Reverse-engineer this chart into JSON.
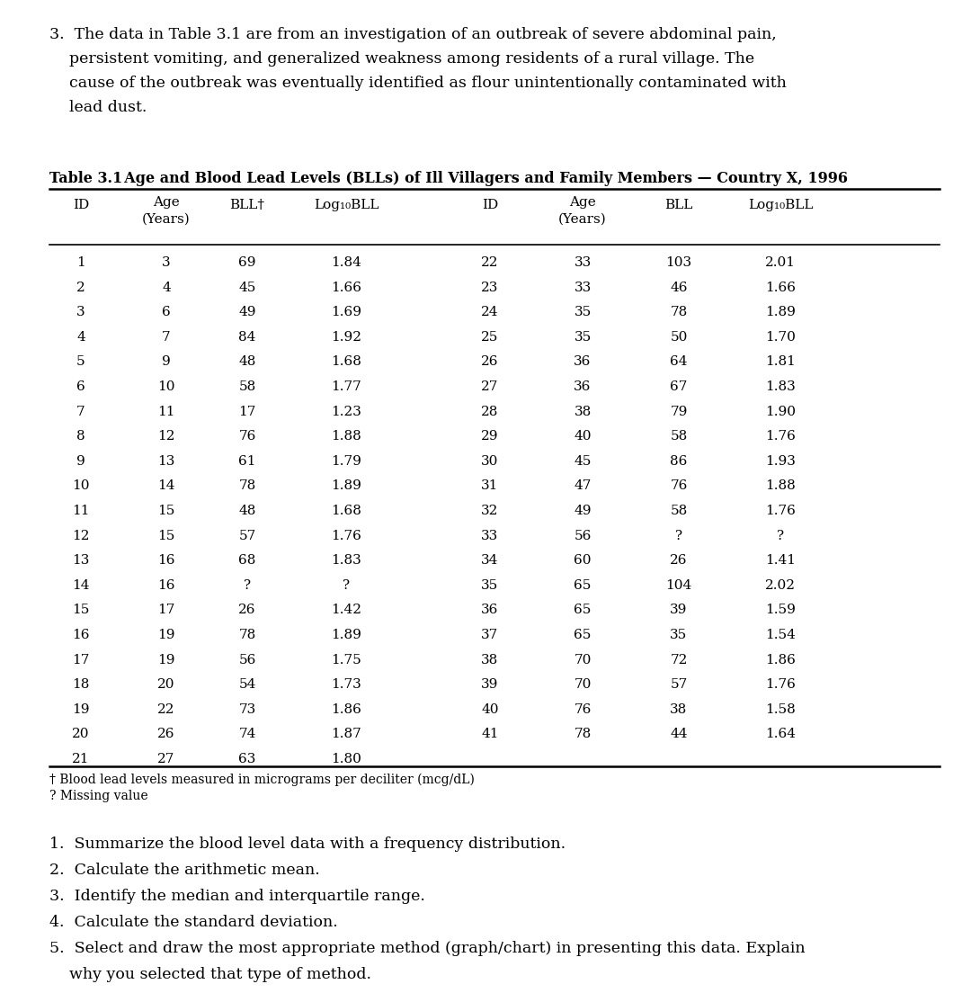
{
  "intro_lines": [
    "3.  The data in Table 3.1 are from an investigation of an outbreak of severe abdominal pain,",
    "    persistent vomiting, and generalized weakness among residents of a rural village. The",
    "    cause of the outbreak was eventually identified as flour unintentionally contaminated with",
    "    lead dust."
  ],
  "table_title_bold": "Table 3.1",
  "table_title_rest": "  Age and Blood Lead Levels (BLLs) of Ill Villagers and Family Members — Country X, 1996",
  "left_data": [
    [
      "1",
      "3",
      "69",
      "1.84"
    ],
    [
      "2",
      "4",
      "45",
      "1.66"
    ],
    [
      "3",
      "6",
      "49",
      "1.69"
    ],
    [
      "4",
      "7",
      "84",
      "1.92"
    ],
    [
      "5",
      "9",
      "48",
      "1.68"
    ],
    [
      "6",
      "10",
      "58",
      "1.77"
    ],
    [
      "7",
      "11",
      "17",
      "1.23"
    ],
    [
      "8",
      "12",
      "76",
      "1.88"
    ],
    [
      "9",
      "13",
      "61",
      "1.79"
    ],
    [
      "10",
      "14",
      "78",
      "1.89"
    ],
    [
      "11",
      "15",
      "48",
      "1.68"
    ],
    [
      "12",
      "15",
      "57",
      "1.76"
    ],
    [
      "13",
      "16",
      "68",
      "1.83"
    ],
    [
      "14",
      "16",
      "?",
      "?"
    ],
    [
      "15",
      "17",
      "26",
      "1.42"
    ],
    [
      "16",
      "19",
      "78",
      "1.89"
    ],
    [
      "17",
      "19",
      "56",
      "1.75"
    ],
    [
      "18",
      "20",
      "54",
      "1.73"
    ],
    [
      "19",
      "22",
      "73",
      "1.86"
    ],
    [
      "20",
      "26",
      "74",
      "1.87"
    ],
    [
      "21",
      "27",
      "63",
      "1.80"
    ]
  ],
  "right_data": [
    [
      "22",
      "33",
      "103",
      "2.01"
    ],
    [
      "23",
      "33",
      "46",
      "1.66"
    ],
    [
      "24",
      "35",
      "78",
      "1.89"
    ],
    [
      "25",
      "35",
      "50",
      "1.70"
    ],
    [
      "26",
      "36",
      "64",
      "1.81"
    ],
    [
      "27",
      "36",
      "67",
      "1.83"
    ],
    [
      "28",
      "38",
      "79",
      "1.90"
    ],
    [
      "29",
      "40",
      "58",
      "1.76"
    ],
    [
      "30",
      "45",
      "86",
      "1.93"
    ],
    [
      "31",
      "47",
      "76",
      "1.88"
    ],
    [
      "32",
      "49",
      "58",
      "1.76"
    ],
    [
      "33",
      "56",
      "?",
      "?"
    ],
    [
      "34",
      "60",
      "26",
      "1.41"
    ],
    [
      "35",
      "65",
      "104",
      "2.02"
    ],
    [
      "36",
      "65",
      "39",
      "1.59"
    ],
    [
      "37",
      "65",
      "35",
      "1.54"
    ],
    [
      "38",
      "70",
      "72",
      "1.86"
    ],
    [
      "39",
      "70",
      "57",
      "1.76"
    ],
    [
      "40",
      "76",
      "38",
      "1.58"
    ],
    [
      "41",
      "78",
      "44",
      "1.64"
    ]
  ],
  "footnotes": [
    "† Blood lead levels measured in micrograms per deciliter (mcg/dL)",
    "? Missing value"
  ],
  "question_lines": [
    "1.  Summarize the blood level data with a frequency distribution.",
    "2.  Calculate the arithmetic mean.",
    "3.  Identify the median and interquartile range.",
    "4.  Calculate the standard deviation.",
    "5.  Select and draw the most appropriate method (graph/chart) in presenting this data. Explain",
    "    why you selected that type of method."
  ],
  "bg_color": "#ffffff",
  "text_color": "#000000"
}
